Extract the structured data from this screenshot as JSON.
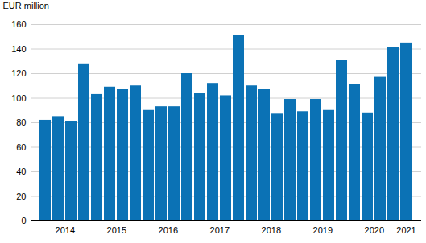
{
  "chart_data": {
    "type": "bar",
    "y_label": "EUR million",
    "categories": [
      null,
      "2014",
      null,
      null,
      null,
      "2015",
      null,
      null,
      null,
      "2016",
      null,
      null,
      null,
      "2017",
      null,
      null,
      null,
      "2018",
      null,
      null,
      null,
      "2019",
      null,
      null,
      null,
      "2020",
      null,
      null,
      "2021"
    ],
    "values": [
      82,
      85,
      81,
      128,
      103,
      109,
      107,
      110,
      90,
      93,
      93,
      120,
      104,
      112,
      102,
      151,
      110,
      107,
      87,
      99,
      89,
      99,
      90,
      131,
      111,
      88,
      117,
      141,
      145
    ],
    "color": "#0b72b5",
    "ylim": [
      0,
      160
    ],
    "yticks": [
      0,
      20,
      40,
      60,
      80,
      100,
      120,
      140,
      160
    ],
    "grid": true
  }
}
